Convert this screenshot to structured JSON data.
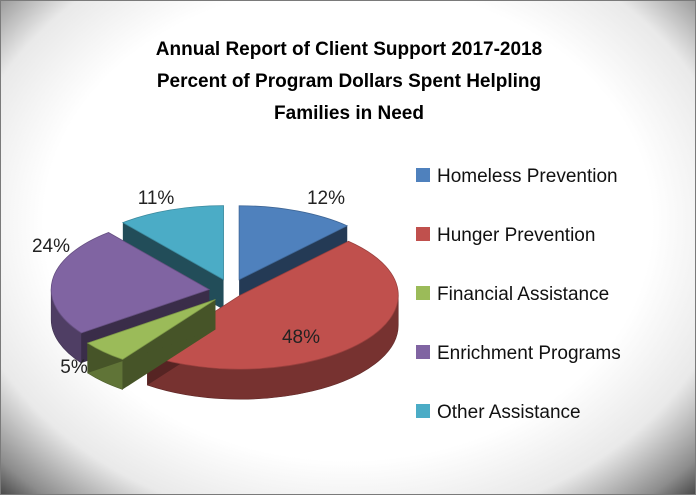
{
  "chart_data": {
    "type": "pie",
    "title_lines": [
      "Annual Report of Client Support 2017-2018",
      "Percent of Program Dollars Spent Helpling",
      "Families in Need"
    ],
    "categories": [
      "Homeless Prevention",
      "Hunger Prevention",
      "Financial Assistance",
      "Enrichment Programs",
      "Other Assistance"
    ],
    "values": [
      12,
      48,
      5,
      24,
      11
    ],
    "labels": [
      "12%",
      "48%",
      "5%",
      "24%",
      "11%"
    ],
    "colors": [
      "#4F81BD",
      "#C0504D",
      "#9BBB59",
      "#8064A2",
      "#4BACC6"
    ],
    "exploded": true,
    "three_d": true,
    "legend_position": "right"
  }
}
